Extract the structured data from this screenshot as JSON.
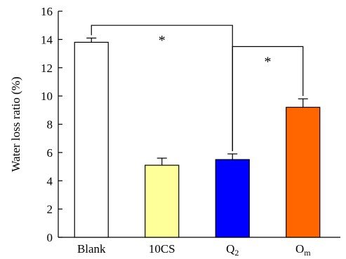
{
  "chart_data": {
    "type": "bar",
    "ylabel": "Water loss ratio (%)",
    "xlabel": "",
    "title": "",
    "ylim": [
      0,
      16
    ],
    "yticks": [
      0,
      2,
      4,
      6,
      8,
      10,
      12,
      14,
      16
    ],
    "grid": false,
    "categories": [
      {
        "main": "Blank",
        "sub": ""
      },
      {
        "main": "10CS",
        "sub": ""
      },
      {
        "main": "Q",
        "sub": "2"
      },
      {
        "main": "O",
        "sub": "m"
      }
    ],
    "values": [
      13.8,
      5.1,
      5.5,
      9.2
    ],
    "errors": [
      0.3,
      0.5,
      0.4,
      0.6
    ],
    "colors": [
      "#ffffff",
      "#ffff99",
      "#0000ff",
      "#ff6600"
    ],
    "significance": [
      {
        "from": 0,
        "to": 2,
        "label": "*",
        "level": 15.0
      },
      {
        "from": 2,
        "to": 3,
        "label": "*",
        "level": 13.5
      }
    ]
  }
}
